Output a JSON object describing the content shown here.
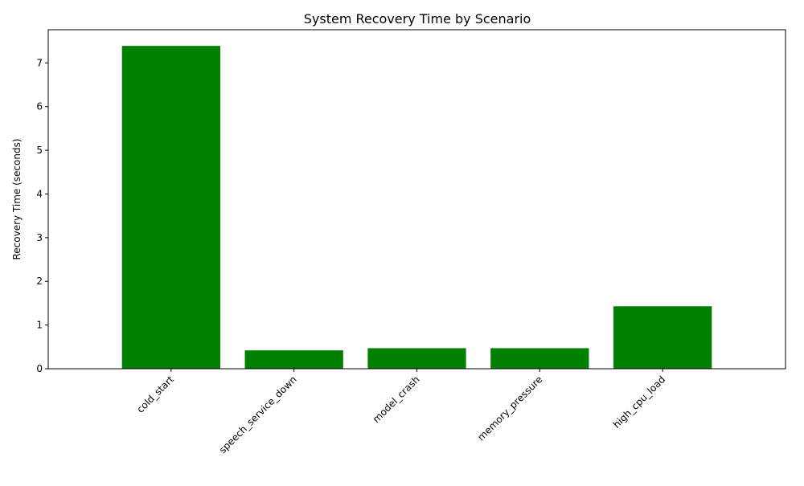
{
  "chart_data": {
    "type": "bar",
    "title": "System Recovery Time by Scenario",
    "xlabel": "",
    "ylabel": "Recovery Time (seconds)",
    "categories": [
      "cold_start",
      "speech_service_down",
      "model_crash",
      "memory_pressure",
      "high_cpu_load"
    ],
    "values": [
      7.39,
      0.42,
      0.47,
      0.47,
      1.43
    ],
    "ylim": [
      0,
      7.76
    ],
    "yticks": [
      0,
      1,
      2,
      3,
      4,
      5,
      6,
      7
    ],
    "bar_color": "#008000",
    "grid": false,
    "legend": "none"
  }
}
